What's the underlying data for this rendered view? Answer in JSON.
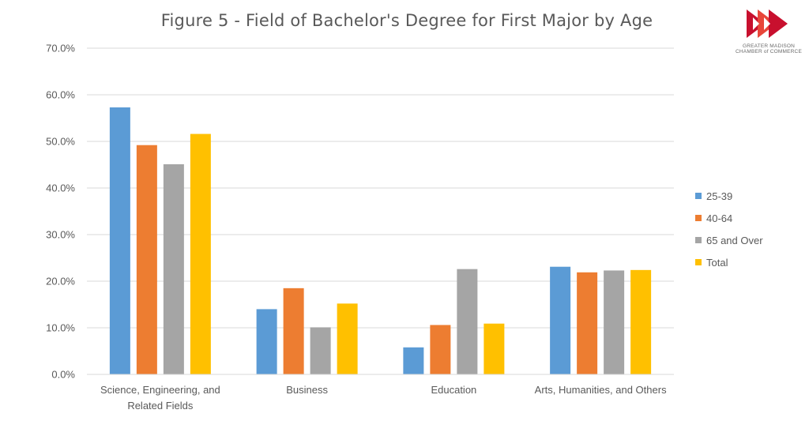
{
  "logo": {
    "line1": "GREATER MADISON",
    "line2": "CHAMBER of COMMERCE",
    "colors": [
      "#c8102e",
      "#e8463a"
    ]
  },
  "colors": {
    "gridline": "#d9d9d9",
    "axis_text": "#595959"
  },
  "chart_data": {
    "type": "bar",
    "title": "Figure 5 - Field of Bachelor's Degree for First Major by Age",
    "xlabel": "",
    "ylabel": "",
    "categories": [
      [
        "Science, Engineering, and",
        "Related Fields"
      ],
      [
        "Business"
      ],
      [
        "Education"
      ],
      [
        "Arts, Humanities, and Others"
      ]
    ],
    "series": [
      {
        "name": "25-39",
        "color": "#5b9bd5",
        "values": [
          57.3,
          14.0,
          5.8,
          23.1
        ]
      },
      {
        "name": "40-64",
        "color": "#ed7d31",
        "values": [
          49.2,
          18.5,
          10.6,
          21.9
        ]
      },
      {
        "name": "65 and Over",
        "color": "#a5a5a5",
        "values": [
          45.1,
          10.1,
          22.6,
          22.3
        ]
      },
      {
        "name": "Total",
        "color": "#ffc000",
        "values": [
          51.6,
          15.2,
          10.9,
          22.4
        ]
      }
    ],
    "ylim": [
      0,
      70
    ],
    "yticks": [
      "0.0%",
      "10.0%",
      "20.0%",
      "30.0%",
      "40.0%",
      "50.0%",
      "60.0%",
      "70.0%"
    ],
    "grid": true,
    "legend": "right"
  }
}
